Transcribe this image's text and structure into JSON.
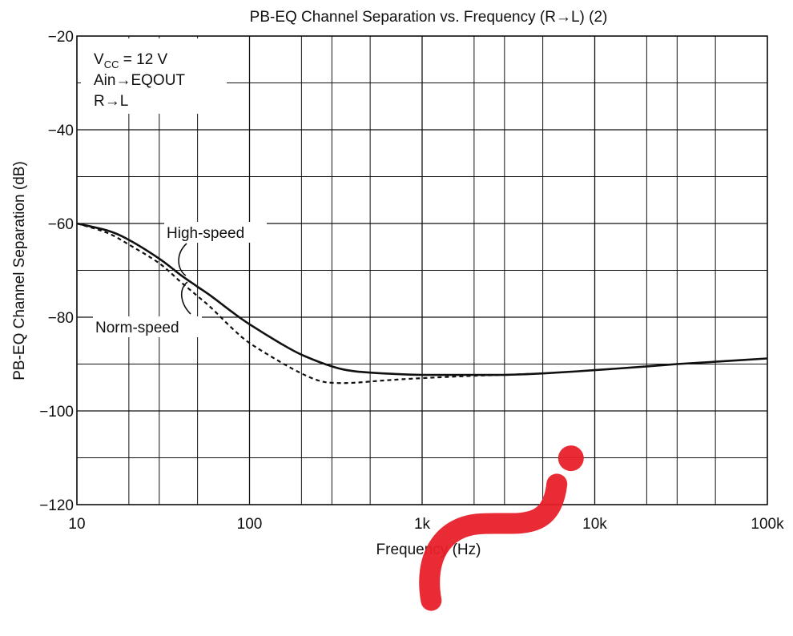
{
  "chart_data": {
    "type": "line",
    "title": "PB-EQ Channel Separation vs. Frequency (R→L) (2)",
    "xlabel": "Frequency  (Hz)",
    "ylabel": "PB-EQ Channel Separation  (dB)",
    "x_scale": "log",
    "xlim": [
      10,
      100000
    ],
    "ylim": [
      -120,
      -20
    ],
    "grid": true,
    "x_ticks": [
      {
        "value": 10,
        "label": "10"
      },
      {
        "value": 100,
        "label": "100"
      },
      {
        "value": 1000,
        "label": "1k"
      },
      {
        "value": 10000,
        "label": "10k"
      },
      {
        "value": 100000,
        "label": "100k"
      }
    ],
    "y_ticks": [
      {
        "value": -20,
        "label": "−20"
      },
      {
        "value": -40,
        "label": "−40"
      },
      {
        "value": -60,
        "label": "−60"
      },
      {
        "value": -80,
        "label": "−80"
      },
      {
        "value": -100,
        "label": "−100"
      },
      {
        "value": -120,
        "label": "−120"
      }
    ],
    "conditions": {
      "vcc_main": "V",
      "vcc_sub": "CC",
      "vcc_value": " = 12 V",
      "line2": "Ain→EQOUT",
      "line3": "R→L"
    },
    "series": [
      {
        "name": "High-speed",
        "style": "solid",
        "color": "#111111",
        "points": [
          [
            10,
            -60
          ],
          [
            15,
            -61.5
          ],
          [
            20,
            -63.5
          ],
          [
            30,
            -67.5
          ],
          [
            40,
            -71
          ],
          [
            50,
            -73.5
          ],
          [
            60,
            -75.5
          ],
          [
            80,
            -79
          ],
          [
            100,
            -81.5
          ],
          [
            150,
            -85.5
          ],
          [
            200,
            -88
          ],
          [
            300,
            -90.5
          ],
          [
            400,
            -91.5
          ],
          [
            600,
            -92
          ],
          [
            1000,
            -92.3
          ],
          [
            2000,
            -92.3
          ],
          [
            3000,
            -92.3
          ],
          [
            5000,
            -92
          ],
          [
            10000,
            -91.3
          ],
          [
            20000,
            -90.5
          ],
          [
            30000,
            -90
          ],
          [
            50000,
            -89.5
          ],
          [
            100000,
            -88.8
          ]
        ]
      },
      {
        "name": "Norm-speed",
        "style": "dashed",
        "color": "#111111",
        "points": [
          [
            10,
            -60
          ],
          [
            15,
            -62
          ],
          [
            20,
            -64.5
          ],
          [
            30,
            -68.5
          ],
          [
            40,
            -72.5
          ],
          [
            50,
            -75.5
          ],
          [
            60,
            -78
          ],
          [
            80,
            -82.5
          ],
          [
            100,
            -85.5
          ],
          [
            150,
            -89.5
          ],
          [
            200,
            -92
          ],
          [
            250,
            -93.5
          ],
          [
            300,
            -94
          ],
          [
            400,
            -94
          ],
          [
            600,
            -93.5
          ],
          [
            1000,
            -93
          ],
          [
            2000,
            -92.5
          ],
          [
            3000,
            -92.3
          ],
          [
            5000,
            -92
          ]
        ]
      }
    ],
    "annotations": [
      {
        "text": "High-speed",
        "target_x": 45
      },
      {
        "text": "Norm-speed",
        "target_x": 45
      }
    ],
    "colors": {
      "line": "#111111",
      "grid": "#111111",
      "watermark": "#e8202a"
    }
  }
}
